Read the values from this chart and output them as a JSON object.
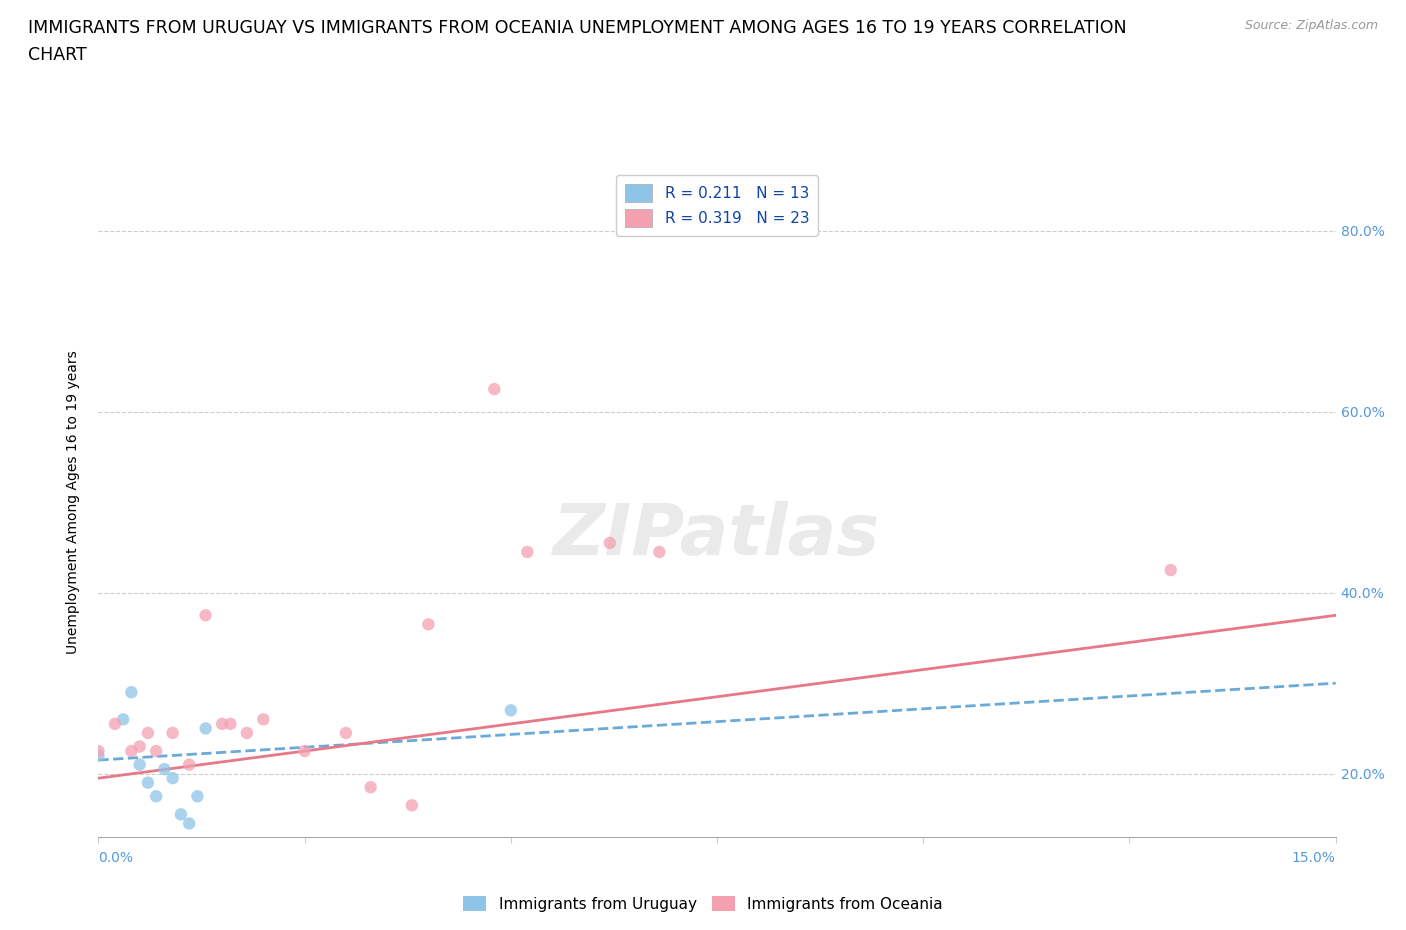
{
  "title_line1": "IMMIGRANTS FROM URUGUAY VS IMMIGRANTS FROM OCEANIA UNEMPLOYMENT AMONG AGES 16 TO 19 YEARS CORRELATION",
  "title_line2": "CHART",
  "source_text": "Source: ZipAtlas.com",
  "ylabel": "Unemployment Among Ages 16 to 19 years",
  "xmin": 0.0,
  "xmax": 0.15,
  "ymin": 0.13,
  "ymax": 0.87,
  "yticks": [
    0.2,
    0.4,
    0.6,
    0.8
  ],
  "ytick_labels": [
    "20.0%",
    "40.0%",
    "60.0%",
    "80.0%"
  ],
  "uruguay_scatter_x": [
    0.0,
    0.003,
    0.004,
    0.005,
    0.006,
    0.007,
    0.008,
    0.009,
    0.01,
    0.011,
    0.012,
    0.013,
    0.05
  ],
  "uruguay_scatter_y": [
    0.22,
    0.26,
    0.29,
    0.21,
    0.19,
    0.175,
    0.205,
    0.195,
    0.155,
    0.145,
    0.175,
    0.25,
    0.27
  ],
  "uruguay_color": "#8ec4e8",
  "oceania_scatter_x": [
    0.0,
    0.002,
    0.004,
    0.005,
    0.006,
    0.007,
    0.009,
    0.011,
    0.013,
    0.015,
    0.016,
    0.018,
    0.02,
    0.025,
    0.03,
    0.033,
    0.038,
    0.04,
    0.048,
    0.052,
    0.062,
    0.068,
    0.13
  ],
  "oceania_scatter_y": [
    0.225,
    0.255,
    0.225,
    0.23,
    0.245,
    0.225,
    0.245,
    0.21,
    0.375,
    0.255,
    0.255,
    0.245,
    0.26,
    0.225,
    0.245,
    0.185,
    0.165,
    0.365,
    0.625,
    0.445,
    0.455,
    0.445,
    0.425
  ],
  "oceania_color": "#f4a0b0",
  "uruguay_line_x": [
    0.0,
    0.15
  ],
  "uruguay_line_y": [
    0.215,
    0.3
  ],
  "uruguay_line_color": "#6aaad8",
  "oceania_line_x": [
    0.0,
    0.15
  ],
  "oceania_line_y": [
    0.195,
    0.375
  ],
  "oceania_line_color": "#e87888",
  "background_color": "#ffffff",
  "grid_color": "#cccccc",
  "marker_size": 80,
  "marker_alpha": 0.75,
  "title_fontsize": 12.5,
  "axis_label_fontsize": 10,
  "tick_fontsize": 10,
  "legend_fontsize": 11,
  "r_uruguay": "0.211",
  "n_uruguay": "13",
  "r_oceania": "0.319",
  "n_oceania": "23"
}
